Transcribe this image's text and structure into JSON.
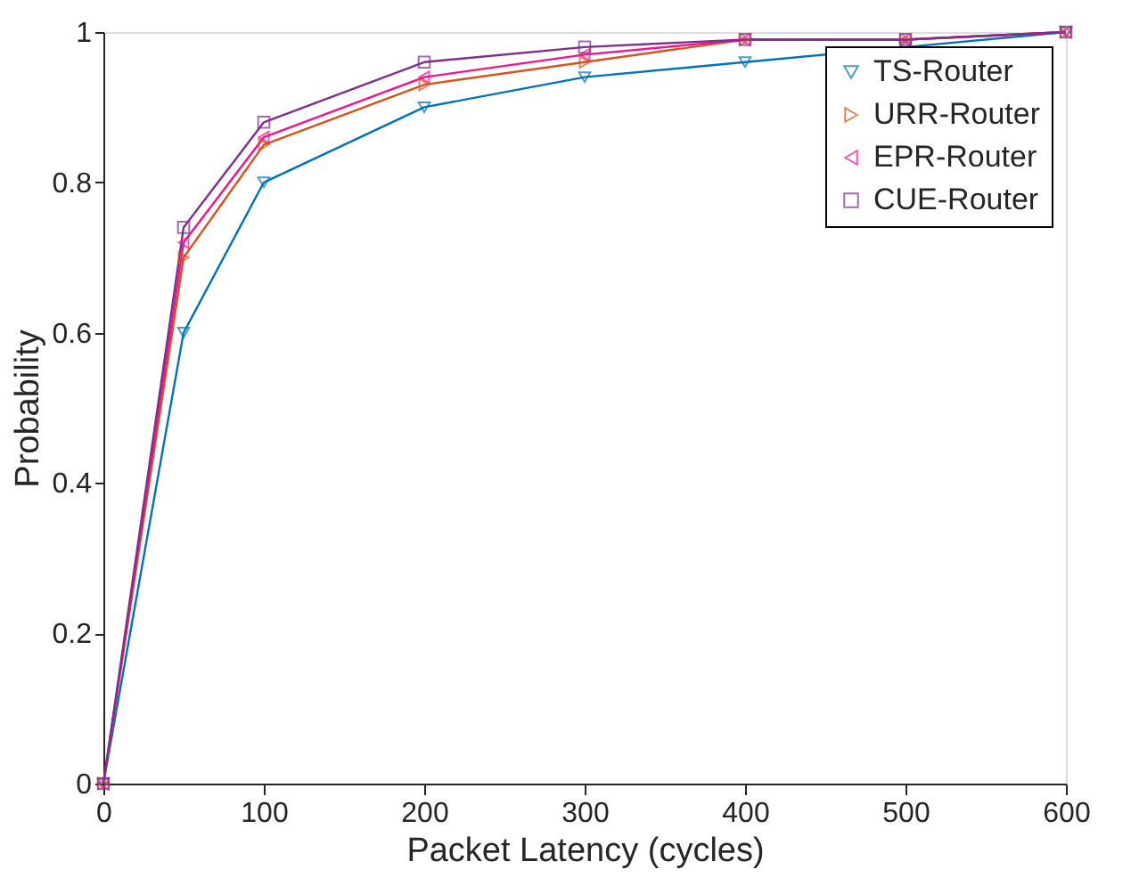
{
  "chart_data": {
    "type": "line",
    "xlabel": "Packet Latency (cycles)",
    "ylabel": "Probability",
    "x": [
      0,
      50,
      100,
      200,
      300,
      400,
      500,
      600
    ],
    "xlim": [
      0,
      600
    ],
    "xticks": [
      0,
      100,
      200,
      300,
      400,
      500,
      600
    ],
    "ylim": [
      0,
      1
    ],
    "yticks": [
      0,
      0.2,
      0.4,
      0.6,
      0.8,
      1
    ],
    "grid": false,
    "legend": "top right",
    "line_style": "solid",
    "series": [
      {
        "name": "TS-Router",
        "color": "#0072bd",
        "marker": "triangle-down",
        "values": [
          0,
          0.6,
          0.8,
          0.9,
          0.94,
          0.96,
          0.98,
          1
        ]
      },
      {
        "name": "URR-Router",
        "color": "#d95319",
        "marker": "triangle-right",
        "values": [
          0,
          0.7,
          0.85,
          0.93,
          0.96,
          0.99,
          0.99,
          1
        ]
      },
      {
        "name": "EPR-Router",
        "color": "#f0148c",
        "marker": "triangle-left",
        "values": [
          0,
          0.72,
          0.86,
          0.94,
          0.97,
          0.99,
          0.99,
          1
        ]
      },
      {
        "name": "CUE-Router",
        "color": "#7e2f8e",
        "marker": "square",
        "values": [
          0,
          0.74,
          0.88,
          0.96,
          0.98,
          0.99,
          0.99,
          1
        ]
      }
    ]
  }
}
